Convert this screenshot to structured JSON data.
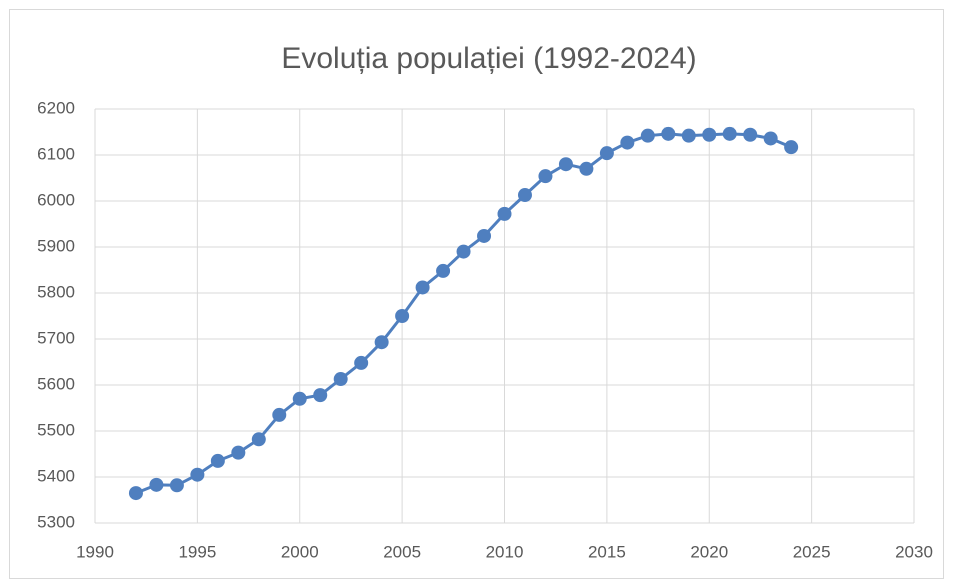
{
  "chart_data": {
    "type": "line",
    "title": "Evoluția populației (1992-2024)",
    "x": [
      1992,
      1993,
      1994,
      1995,
      1996,
      1997,
      1998,
      1999,
      2000,
      2001,
      2002,
      2003,
      2004,
      2005,
      2006,
      2007,
      2008,
      2009,
      2010,
      2011,
      2012,
      2013,
      2014,
      2015,
      2016,
      2017,
      2018,
      2019,
      2020,
      2021,
      2022,
      2023,
      2024
    ],
    "series": [
      {
        "color": "#4f7fbf",
        "values": [
          5365,
          5383,
          5382,
          5405,
          5435,
          5453,
          5482,
          5535,
          5570,
          5578,
          5613,
          5648,
          5693,
          5750,
          5812,
          5848,
          5890,
          5924,
          5972,
          6013,
          6054,
          6080,
          6070,
          6104,
          6127,
          6142,
          6146,
          6142,
          6144,
          6146,
          6144,
          6136,
          6117
        ]
      }
    ],
    "xlim": [
      1990,
      2030
    ],
    "xticks": [
      1990,
      1995,
      2000,
      2005,
      2010,
      2015,
      2020,
      2025,
      2030
    ],
    "ylim": [
      5300,
      6200
    ],
    "yticks": [
      5300,
      5400,
      5500,
      5600,
      5700,
      5800,
      5900,
      6000,
      6100,
      6200
    ],
    "grid": true
  }
}
